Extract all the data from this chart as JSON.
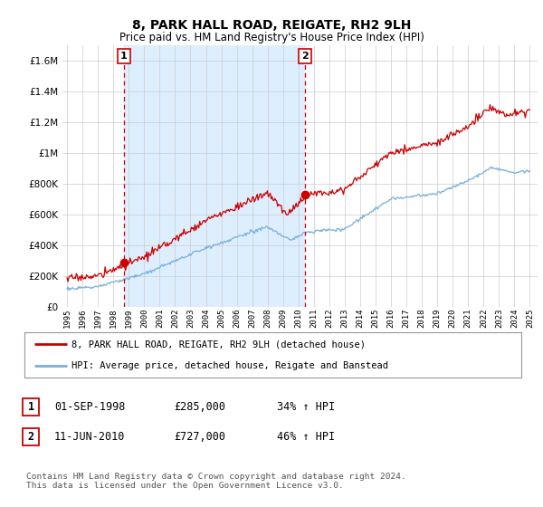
{
  "title": "8, PARK HALL ROAD, REIGATE, RH2 9LH",
  "subtitle": "Price paid vs. HM Land Registry's House Price Index (HPI)",
  "ylim": [
    0,
    1700000
  ],
  "yticks": [
    0,
    200000,
    400000,
    600000,
    800000,
    1000000,
    1200000,
    1400000,
    1600000
  ],
  "sale1": {
    "date_num": 1998.67,
    "price": 285000,
    "label": "1"
  },
  "sale2": {
    "date_num": 2010.44,
    "price": 727000,
    "label": "2"
  },
  "vline1_x": 1998.67,
  "vline2_x": 2010.44,
  "red_line_color": "#cc0000",
  "blue_line_color": "#7aaedc",
  "shade_color": "#ddeeff",
  "legend_red_label": "8, PARK HALL ROAD, REIGATE, RH2 9LH (detached house)",
  "legend_blue_label": "HPI: Average price, detached house, Reigate and Banstead",
  "table_row1": [
    "1",
    "01-SEP-1998",
    "£285,000",
    "34% ↑ HPI"
  ],
  "table_row2": [
    "2",
    "11-JUN-2010",
    "£727,000",
    "46% ↑ HPI"
  ],
  "footnote": "Contains HM Land Registry data © Crown copyright and database right 2024.\nThis data is licensed under the Open Government Licence v3.0.",
  "background_color": "#ffffff",
  "xlim_start": 1994.7,
  "xlim_end": 2025.5,
  "xticks": [
    1995,
    1996,
    1997,
    1998,
    1999,
    2000,
    2001,
    2002,
    2003,
    2004,
    2005,
    2006,
    2007,
    2008,
    2009,
    2010,
    2011,
    2012,
    2013,
    2014,
    2015,
    2016,
    2017,
    2018,
    2019,
    2020,
    2021,
    2022,
    2023,
    2024,
    2025
  ]
}
